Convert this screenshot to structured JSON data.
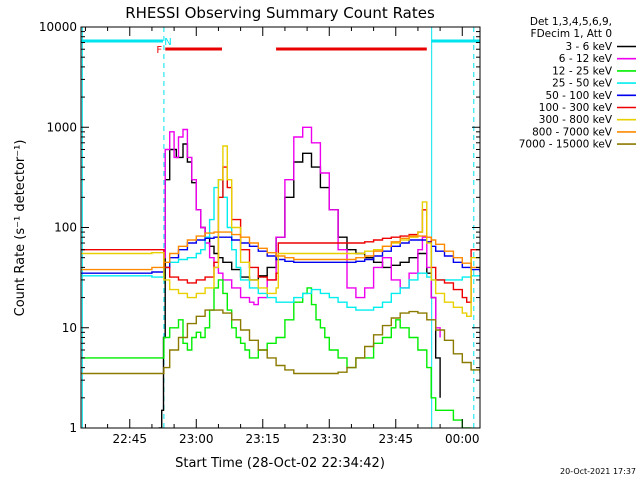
{
  "chart_data": {
    "type": "line",
    "title": "RHESSI Observing Summary Count Rates",
    "xlabel": "Start Time (28-Oct-02 22:34:42)",
    "ylabel": "Count Rate (s⁻¹ detector⁻¹)",
    "y_scale": "log",
    "ylim": [
      1,
      10000
    ],
    "xlim": [
      34,
      124
    ],
    "x_ticks": [
      {
        "value": 45,
        "label": "22:45"
      },
      {
        "value": 60,
        "label": "23:00"
      },
      {
        "value": 75,
        "label": "23:15"
      },
      {
        "value": 90,
        "label": "23:30"
      },
      {
        "value": 105,
        "label": "23:45"
      },
      {
        "value": 120,
        "label": "00:00"
      }
    ],
    "y_ticks": [
      {
        "value": 1,
        "label": "1"
      },
      {
        "value": 10,
        "label": "10"
      },
      {
        "value": 100,
        "label": "100"
      },
      {
        "value": 1000,
        "label": "1000"
      },
      {
        "value": 10000,
        "label": "10000"
      }
    ],
    "legend_header": [
      "Det 1,3,4,5,6,9,",
      "FDecim 1, Att 0"
    ],
    "legend_position": "right",
    "footer_date": "20-Oct-2021 17:37",
    "markers": [
      {
        "label": "N",
        "color": "#00e5ee",
        "segments": [
          [
            34,
            52.5
          ],
          [
            113,
            124
          ]
        ]
      },
      {
        "label": "F",
        "color": "#e80000",
        "segments": [
          [
            53,
            65.8
          ],
          [
            78,
            112
          ]
        ]
      }
    ],
    "vertical_lines": [
      {
        "x": 34.3,
        "color": "#00e5ee",
        "style": "solid"
      },
      {
        "x": 52.7,
        "color": "#00e5ee",
        "style": "dashed"
      },
      {
        "x": 113.1,
        "color": "#00e5ee",
        "style": "solid"
      },
      {
        "x": 122.6,
        "color": "#00e5ee",
        "style": "dashed"
      }
    ],
    "series": [
      {
        "name": "3 - 6 keV",
        "color": "#000000",
        "x": [
          51.5,
          52.2,
          52.6,
          53,
          54,
          55.5,
          57,
          58,
          59,
          60,
          61,
          62,
          63,
          64,
          65,
          66,
          68,
          70,
          72,
          74,
          76,
          78,
          80,
          82,
          84,
          86,
          88,
          90,
          92,
          94,
          96,
          98,
          100,
          102,
          104,
          106,
          108,
          110,
          112,
          113,
          114,
          115
        ],
        "y": [
          1,
          1.5,
          8,
          300,
          600,
          500,
          680,
          450,
          280,
          150,
          100,
          80,
          65,
          55,
          50,
          45,
          38,
          32,
          30,
          33,
          40,
          80,
          200,
          450,
          550,
          400,
          250,
          150,
          80,
          60,
          55,
          50,
          45,
          40,
          42,
          45,
          50,
          55,
          35,
          20,
          5,
          2
        ]
      },
      {
        "name": "6 - 12 keV",
        "color": "#ee00ee",
        "x": [
          52.6,
          53,
          54,
          55,
          56,
          57,
          58,
          59,
          60,
          61,
          62,
          63,
          64,
          65,
          66,
          68,
          70,
          72,
          73,
          74,
          76,
          78,
          80,
          82,
          84,
          86,
          88,
          90,
          92,
          94,
          96,
          98,
          100,
          102,
          104,
          106,
          108,
          110,
          111,
          112,
          113,
          114,
          115
        ],
        "y": [
          50,
          600,
          900,
          500,
          800,
          950,
          500,
          300,
          150,
          100,
          70,
          50,
          40,
          35,
          30,
          25,
          20,
          18,
          17,
          20,
          30,
          80,
          300,
          800,
          1000,
          700,
          350,
          150,
          60,
          25,
          20,
          25,
          40,
          50,
          30,
          25,
          35,
          60,
          80,
          40,
          20,
          10,
          8
        ]
      },
      {
        "name": "12 - 25 keV",
        "color": "#00ee00",
        "x": [
          34,
          40,
          46,
          50,
          52,
          52.7,
          54,
          56,
          57,
          58,
          59,
          60,
          61,
          62,
          63,
          64,
          65,
          66,
          67,
          68,
          69,
          70,
          71,
          72,
          74,
          76,
          78,
          80,
          82,
          84,
          85,
          86,
          87,
          88,
          89,
          90,
          92,
          94,
          96,
          98,
          100,
          102,
          104,
          105,
          106,
          108,
          110,
          112,
          113,
          114,
          116,
          118,
          120,
          122
        ],
        "y": [
          5,
          5,
          5,
          5,
          5,
          8,
          10,
          12,
          7,
          6,
          8,
          9,
          8,
          10,
          15,
          25,
          30,
          22,
          15,
          10,
          8,
          7,
          6,
          5,
          6,
          7,
          8,
          12,
          18,
          22,
          25,
          17,
          12,
          10,
          8,
          6,
          5,
          4,
          5,
          5,
          7,
          8,
          10,
          12,
          10,
          8,
          6,
          4,
          2,
          1.5,
          1.5,
          1.2,
          1,
          1
        ]
      },
      {
        "name": "25 - 50 keV",
        "color": "#00eeee",
        "x": [
          34,
          40,
          46,
          50,
          52,
          52.7,
          54,
          56,
          58,
          60,
          61,
          62,
          63,
          64,
          65,
          66,
          67,
          68,
          69,
          70,
          72,
          74,
          76,
          78,
          80,
          82,
          84,
          86,
          88,
          90,
          92,
          94,
          96,
          98,
          100,
          102,
          104,
          106,
          108,
          110,
          112,
          113,
          114,
          116,
          118,
          120,
          122,
          124
        ],
        "y": [
          33,
          33,
          33,
          32,
          32,
          40,
          45,
          48,
          50,
          55,
          60,
          80,
          120,
          250,
          300,
          200,
          100,
          60,
          40,
          30,
          25,
          22,
          20,
          18,
          18,
          20,
          22,
          24,
          22,
          20,
          18,
          16,
          15,
          15,
          16,
          18,
          22,
          25,
          30,
          35,
          32,
          30,
          30,
          30,
          30,
          32,
          33,
          33
        ]
      },
      {
        "name": "50 - 100 keV",
        "color": "#0000ee",
        "x": [
          34,
          40,
          46,
          50,
          52,
          52.7,
          54,
          56,
          58,
          60,
          62,
          64,
          66,
          68,
          70,
          72,
          74,
          76,
          78,
          80,
          82,
          84,
          86,
          88,
          90,
          92,
          94,
          96,
          98,
          100,
          102,
          104,
          106,
          108,
          110,
          112,
          113,
          114,
          116,
          118,
          120,
          122,
          124
        ],
        "y": [
          35,
          35,
          35,
          36,
          36,
          40,
          50,
          60,
          70,
          75,
          78,
          80,
          80,
          75,
          70,
          65,
          58,
          52,
          48,
          46,
          45,
          45,
          45,
          45,
          45,
          45,
          45,
          46,
          48,
          52,
          58,
          65,
          70,
          75,
          75,
          72,
          65,
          58,
          52,
          45,
          40,
          38,
          36
        ]
      },
      {
        "name": "100 - 300 keV",
        "color": "#ee0000",
        "x": [
          34,
          40,
          46,
          50,
          52,
          52.7,
          54,
          56,
          58,
          60,
          62,
          64,
          65,
          66,
          67,
          68,
          70,
          72,
          74,
          76,
          78,
          78.5,
          80,
          82,
          84,
          86,
          88,
          90,
          92,
          94,
          96,
          98,
          100,
          102,
          104,
          106,
          108,
          110,
          111,
          112,
          113,
          114,
          116,
          118,
          120,
          121,
          122,
          123,
          124
        ],
        "y": [
          60,
          60,
          60,
          60,
          60,
          40,
          32,
          30,
          28,
          30,
          32,
          45,
          200,
          400,
          250,
          120,
          60,
          40,
          32,
          30,
          35,
          70,
          70,
          70,
          70,
          70,
          70,
          70,
          70,
          70,
          70,
          72,
          75,
          78,
          80,
          82,
          85,
          90,
          150,
          80,
          40,
          30,
          28,
          24,
          20,
          18,
          60,
          60,
          60
        ]
      },
      {
        "name": "300 - 800 keV",
        "color": "#e8d000",
        "x": [
          34,
          40,
          46,
          50,
          52,
          52.7,
          54,
          56,
          58,
          60,
          62,
          64,
          65,
          66,
          67,
          68,
          70,
          72,
          74,
          76,
          78,
          78.5,
          80,
          82,
          84,
          86,
          88,
          90,
          92,
          94,
          96,
          98,
          100,
          102,
          104,
          106,
          108,
          110,
          111,
          112,
          113,
          114,
          116,
          118,
          120,
          121,
          122,
          123,
          124
        ],
        "y": [
          55,
          55,
          55,
          56,
          56,
          30,
          24,
          22,
          20,
          22,
          25,
          40,
          300,
          650,
          300,
          100,
          45,
          30,
          25,
          22,
          25,
          55,
          55,
          55,
          55,
          55,
          55,
          55,
          55,
          55,
          55,
          58,
          60,
          65,
          70,
          75,
          80,
          90,
          180,
          70,
          30,
          22,
          18,
          16,
          14,
          13,
          50,
          50,
          50
        ]
      },
      {
        "name": "800 - 7000 keV",
        "color": "#ff8a00",
        "x": [
          34,
          40,
          46,
          50,
          52,
          52.7,
          54,
          56,
          58,
          60,
          62,
          64,
          66,
          68,
          70,
          72,
          74,
          76,
          78,
          80,
          82,
          84,
          86,
          88,
          90,
          92,
          94,
          96,
          98,
          100,
          102,
          104,
          106,
          108,
          110,
          112,
          113,
          114,
          116,
          118,
          120,
          122,
          124
        ],
        "y": [
          38,
          38,
          38,
          40,
          40,
          45,
          55,
          65,
          75,
          82,
          88,
          90,
          90,
          85,
          80,
          70,
          62,
          56,
          52,
          50,
          48,
          48,
          48,
          48,
          48,
          48,
          48,
          50,
          52,
          58,
          65,
          72,
          78,
          82,
          82,
          80,
          75,
          68,
          58,
          50,
          44,
          40,
          38
        ]
      },
      {
        "name": "7000 - 15000 keV",
        "color": "#8b7a00",
        "x": [
          34,
          40,
          46,
          50,
          52,
          52.7,
          54,
          56,
          58,
          60,
          62,
          64,
          66,
          68,
          70,
          72,
          74,
          76,
          78,
          80,
          82,
          84,
          86,
          88,
          90,
          92,
          94,
          96,
          98,
          100,
          102,
          104,
          106,
          108,
          110,
          112,
          114,
          116,
          118,
          120,
          122,
          124
        ],
        "y": [
          3.5,
          3.5,
          3.5,
          3.5,
          3.5,
          4,
          6,
          8,
          11,
          13,
          15,
          15,
          14,
          12,
          9.5,
          7.5,
          6,
          5,
          4.2,
          3.8,
          3.5,
          3.5,
          3.5,
          3.5,
          3.5,
          3.6,
          4,
          5,
          6.5,
          8.5,
          10.5,
          12.5,
          14,
          14.5,
          14,
          12,
          9.5,
          7.5,
          5.5,
          4.5,
          3.8,
          3.5
        ]
      }
    ]
  }
}
